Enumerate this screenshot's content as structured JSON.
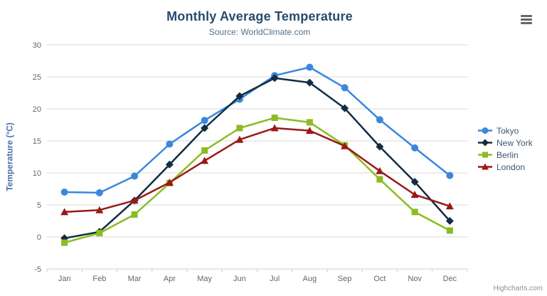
{
  "title": "Monthly Average Temperature",
  "subtitle": "Source: WorldClimate.com",
  "credits": "Highcharts.com",
  "context_menu": {
    "icon": "hamburger-menu-icon"
  },
  "y_axis": {
    "title": "Temperature (°C)",
    "tick_labels": [
      "-5",
      "0",
      "5",
      "10",
      "15",
      "20",
      "25",
      "30"
    ]
  },
  "x_axis": {
    "tick_labels": [
      "Jan",
      "Feb",
      "Mar",
      "Apr",
      "May",
      "Jun",
      "Jul",
      "Aug",
      "Sep",
      "Oct",
      "Nov",
      "Dec"
    ]
  },
  "legend": {
    "items": [
      "Tokyo",
      "New York",
      "Berlin",
      "London"
    ],
    "position": "right-middle"
  },
  "colors": {
    "title": "#274b6d",
    "subtitle": "#55718a",
    "axis_labels": "#666666",
    "y_axis_title": "#4572a7",
    "grid_line": "#d8d8d8",
    "axis_line": "#c0d0e0",
    "legend_text": "#3e576f",
    "credits": "#909090",
    "context_button": "#666666"
  },
  "chart_data": {
    "type": "line",
    "title": "Monthly Average Temperature",
    "subtitle": "Source: WorldClimate.com",
    "xlabel": "",
    "ylabel": "Temperature (°C)",
    "ylim": [
      -5,
      30
    ],
    "ytick_interval": 5,
    "grid": true,
    "legend_position": "right-middle",
    "categories": [
      "Jan",
      "Feb",
      "Mar",
      "Apr",
      "May",
      "Jun",
      "Jul",
      "Aug",
      "Sep",
      "Oct",
      "Nov",
      "Dec"
    ],
    "series": [
      {
        "name": "Tokyo",
        "color": "#3a87dd",
        "marker": "circle",
        "values": [
          7.0,
          6.9,
          9.5,
          14.5,
          18.2,
          21.5,
          25.2,
          26.5,
          23.3,
          18.3,
          13.9,
          9.6
        ]
      },
      {
        "name": "New York",
        "color": "#122c44",
        "marker": "diamond",
        "values": [
          -0.2,
          0.8,
          5.7,
          11.3,
          17.0,
          22.0,
          24.8,
          24.1,
          20.1,
          14.1,
          8.6,
          2.5
        ]
      },
      {
        "name": "Berlin",
        "color": "#8bbc21",
        "marker": "square",
        "values": [
          -0.9,
          0.6,
          3.5,
          8.4,
          13.5,
          17.0,
          18.6,
          17.9,
          14.3,
          9.0,
          3.9,
          1.0
        ]
      },
      {
        "name": "London",
        "color": "#9b1818",
        "marker": "triangle",
        "values": [
          3.9,
          4.2,
          5.7,
          8.5,
          11.9,
          15.2,
          17.0,
          16.6,
          14.2,
          10.3,
          6.6,
          4.8
        ]
      }
    ]
  }
}
